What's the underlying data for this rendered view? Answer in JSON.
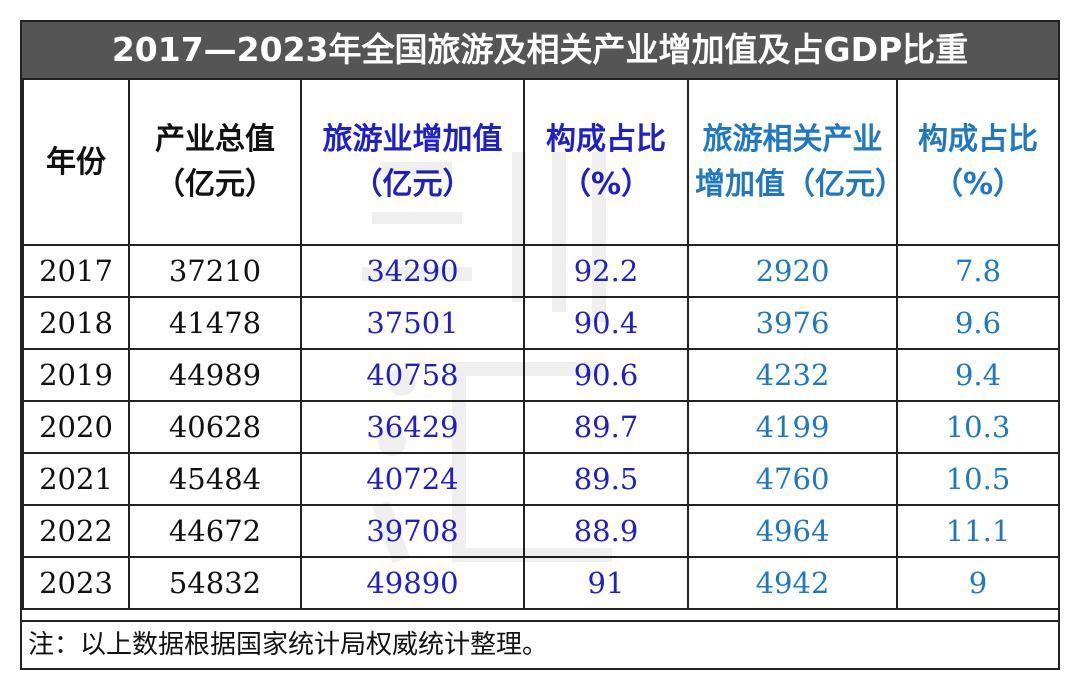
{
  "title": "2017—2023年全国旅游及相关产业增加值及占GDP比重",
  "colors": {
    "title_bg": "#555555",
    "text": "#111111",
    "blue": "#2020c8",
    "teal": "#1f78c0",
    "watermark": "#000000"
  },
  "headers": [
    {
      "text": "年份",
      "color": "black"
    },
    {
      "text": "产业总值（亿元）",
      "color": "black"
    },
    {
      "text": "旅游业增加值（亿元）",
      "color": "blue"
    },
    {
      "text": "构成占比（%）",
      "color": "blue"
    },
    {
      "text": "旅游相关产业增加值（亿元）",
      "color": "teal"
    },
    {
      "text": "构成占比（%）",
      "color": "teal"
    }
  ],
  "rows": [
    [
      "2017",
      "37210",
      "34290",
      "92.2",
      "2920",
      "7.8"
    ],
    [
      "2018",
      "41478",
      "37501",
      "90.4",
      "3976",
      "9.6"
    ],
    [
      "2019",
      "44989",
      "40758",
      "90.6",
      "4232",
      "9.4"
    ],
    [
      "2020",
      "40628",
      "36429",
      "89.7",
      "4199",
      "10.3"
    ],
    [
      "2021",
      "45484",
      "40724",
      "89.5",
      "4760",
      "10.5"
    ],
    [
      "2022",
      "44672",
      "39708",
      "88.9",
      "4964",
      "11.1"
    ],
    [
      "2023",
      "54832",
      "49890",
      "91",
      "4942",
      "9"
    ]
  ],
  "note": "注：以上数据根据国家统计局权威统计整理。"
}
